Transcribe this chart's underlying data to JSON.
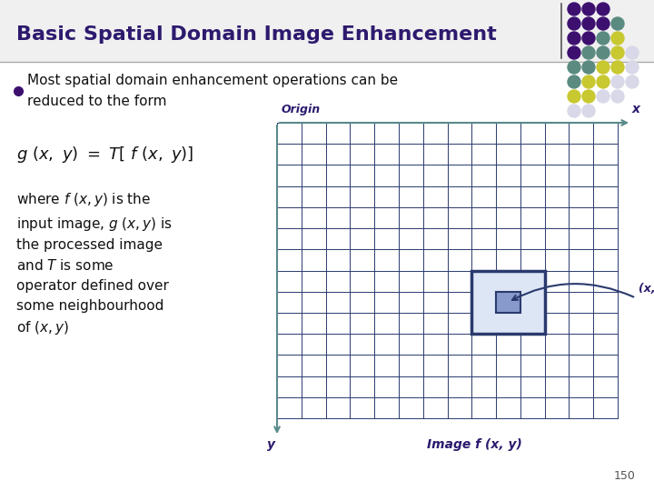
{
  "title": "Basic Spatial Domain Image Enhancement",
  "title_color": "#2d1a6e",
  "title_fontsize": 16,
  "bg_color": "#ffffff",
  "grid_line_color": "#2a3a6e",
  "grid_bg_color": "#ffffff",
  "axis_color": "#5a8a8a",
  "page_number": "150",
  "origin_label": "Origin",
  "x_label": "x",
  "y_label": "y",
  "image_label": "Image f (x, y)",
  "xy_label": "(x, y)",
  "label_color": "#2d1a6e",
  "highlight_fill": "#dce6f5",
  "highlight_edge": "#2a3a6e",
  "center_fill": "#8899cc",
  "dot_rows": [
    [
      "#3d1070",
      "#3d1070",
      "#3d1070"
    ],
    [
      "#3d1070",
      "#3d1070",
      "#3d1070",
      "#5a8a80"
    ],
    [
      "#3d1070",
      "#3d1070",
      "#5a8a80",
      "#c8c830"
    ],
    [
      "#3d1070",
      "#5a8a80",
      "#5a8a80",
      "#c8c830",
      "#d8d8e8"
    ],
    [
      "#5a8a80",
      "#5a8a80",
      "#c8c830",
      "#c8c830",
      "#d8d8e8"
    ],
    [
      "#5a8a80",
      "#c8c830",
      "#c8c830",
      "#d8d8e8",
      "#d8d8e8"
    ],
    [
      "#c8c830",
      "#c8c830",
      "#d8d8e8",
      "#d8d8e8"
    ],
    [
      "#d8d8e8",
      "#d8d8e8"
    ]
  ]
}
